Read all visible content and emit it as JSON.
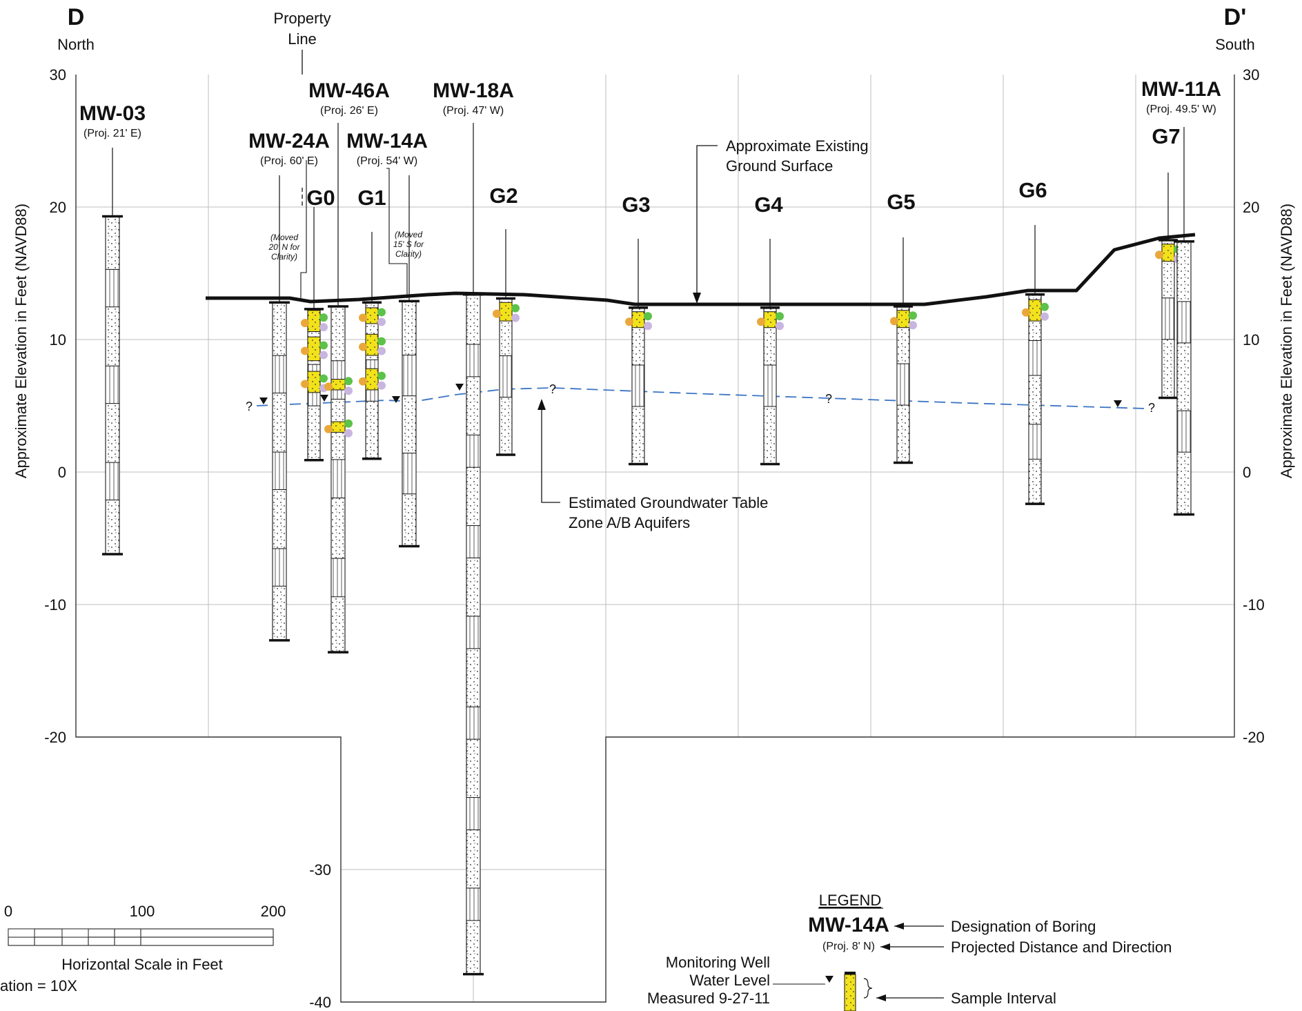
{
  "section": {
    "start_label": "D",
    "start_direction": "North",
    "end_label": "D'",
    "end_direction": "South"
  },
  "axis": {
    "y_label": "Approximate Elevation in Feet (NAVD88)",
    "ticks": [
      "30",
      "20",
      "10",
      "0",
      "-10",
      "-20",
      "-30",
      "-40"
    ]
  },
  "annotations": {
    "property_line": [
      "Property",
      "Line"
    ],
    "ground_surface": [
      "Approximate Existing",
      "Ground Surface"
    ],
    "groundwater": [
      "Estimated Groundwater Table",
      "Zone A/B Aquifers"
    ],
    "moved_24a": [
      "(Moved",
      "20' N for",
      "Clarity)"
    ],
    "moved_14a": [
      "(Moved",
      "15' S for",
      "Clarity)"
    ],
    "question": "?"
  },
  "borings": [
    {
      "name": "MW-03",
      "proj": "(Proj. 21' E)",
      "top_elev": 19.3,
      "bottom_elev": -6.2
    },
    {
      "name": "MW-24A",
      "proj": "(Proj. 60' E)",
      "top_elev": 12.8,
      "bottom_elev": -12.7
    },
    {
      "name": "G0",
      "proj": "",
      "top_elev": 12.3,
      "bottom_elev": 0.9
    },
    {
      "name": "MW-46A",
      "proj": "(Proj. 26' E)",
      "top_elev": 12.5,
      "bottom_elev": -13.6
    },
    {
      "name": "G1",
      "proj": "",
      "top_elev": 12.8,
      "bottom_elev": 1.0
    },
    {
      "name": "MW-14A",
      "proj": "(Proj. 54' W)",
      "top_elev": 12.9,
      "bottom_elev": -5.6
    },
    {
      "name": "MW-18A",
      "proj": "(Proj. 47' W)",
      "top_elev": 13.4,
      "bottom_elev": -37.9
    },
    {
      "name": "G2",
      "proj": "",
      "top_elev": 13.1,
      "bottom_elev": 1.3
    },
    {
      "name": "G3",
      "proj": "",
      "top_elev": 12.4,
      "bottom_elev": 0.6
    },
    {
      "name": "G4",
      "proj": "",
      "top_elev": 12.4,
      "bottom_elev": 0.6
    },
    {
      "name": "G5",
      "proj": "",
      "top_elev": 12.5,
      "bottom_elev": 0.7
    },
    {
      "name": "G6",
      "proj": "",
      "top_elev": 13.4,
      "bottom_elev": -2.4
    },
    {
      "name": "G7",
      "proj": "",
      "top_elev": 17.5,
      "bottom_elev": 5.6
    },
    {
      "name": "MW-11A",
      "proj": "(Proj. 49.5' W)",
      "top_elev": 17.4,
      "bottom_elev": -3.2
    }
  ],
  "scale_bar": {
    "labels": [
      "0",
      "100",
      "200"
    ],
    "title": "Horizontal Scale in Feet",
    "exaggeration": "ation = 10X"
  },
  "legend": {
    "title": "LEGEND",
    "example_name": "MW-14A",
    "example_proj": "(Proj. 8' N)",
    "designation": "Designation of Boring",
    "projected": "Projected Distance and Direction",
    "well_label": [
      "Monitoring Well",
      "Water Level",
      "Measured 9-27-11"
    ],
    "sample": "Sample Interval"
  },
  "colors": {
    "sample_fill": "#f2e21a",
    "orange_marker": "#eaa83a",
    "green_marker": "#5cc24a",
    "lavender_marker": "#c8b6e0",
    "groundwater_line": "#3b74c4",
    "ground_surface": "#111111",
    "grid": "#bdbdbd"
  }
}
